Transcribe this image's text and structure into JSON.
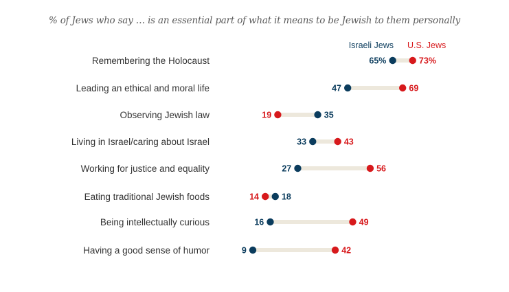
{
  "chart_data": {
    "type": "dot-plot",
    "title": "% of Jews who say … is an essential part of what it means to be Jewish to them personally",
    "xlabel": "",
    "ylabel": "",
    "xlim": [
      0,
      100
    ],
    "grid": false,
    "legend_position": "top-right",
    "colors": {
      "israeli": "#0b3c5d",
      "us": "#d7191c",
      "connector": "#ede8dc"
    },
    "series": [
      {
        "key": "israeli",
        "name": "Israeli Jews",
        "values": [
          65,
          47,
          35,
          33,
          27,
          18,
          16,
          9
        ]
      },
      {
        "key": "us",
        "name": "U.S. Jews",
        "values": [
          73,
          69,
          19,
          43,
          56,
          14,
          49,
          42
        ]
      }
    ],
    "categories": [
      "Remembering the Holocaust",
      "Leading an ethical and moral life",
      "Observing Jewish law",
      "Living in Israel/caring about Israel",
      "Working for justice and equality",
      "Eating traditional Jewish foods",
      "Being intellectually curious",
      "Having a good sense of humor"
    ],
    "first_row_percent_suffix": "%"
  }
}
